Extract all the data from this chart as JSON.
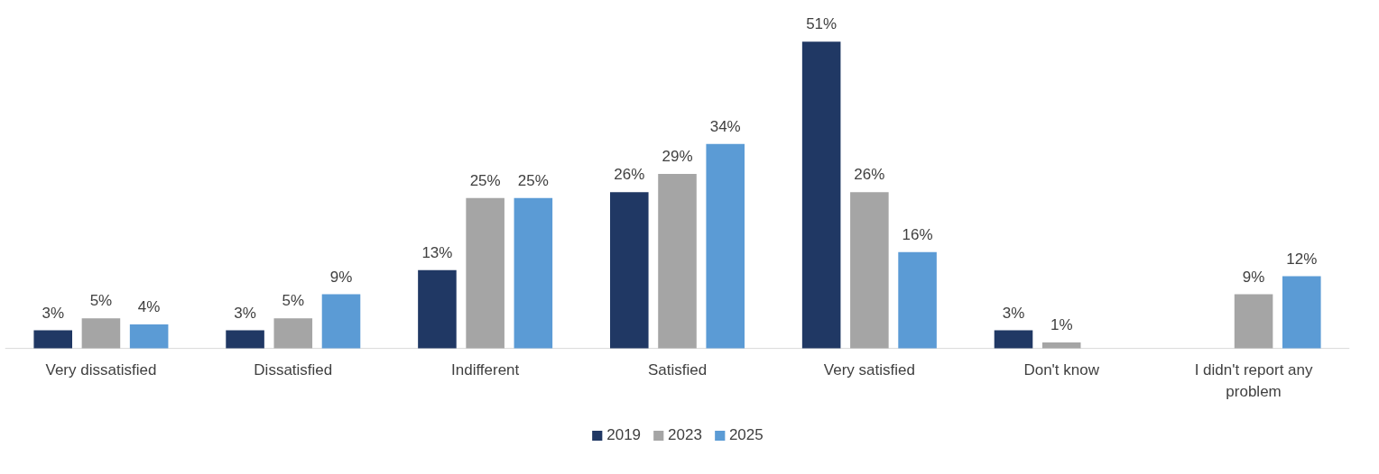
{
  "chart_data": {
    "type": "bar",
    "categories": [
      "Very dissatisfied",
      "Dissatisfied",
      "Indifferent",
      "Satisfied",
      "Very satisfied",
      "Don't know",
      "I didn't report any problem"
    ],
    "series": [
      {
        "name": "2019",
        "color": "#203864",
        "values": [
          3,
          3,
          13,
          26,
          51,
          3,
          null
        ],
        "value_labels": [
          "3%",
          "3%",
          "13%",
          "26%",
          "51%",
          "3%",
          null
        ]
      },
      {
        "name": "2023",
        "color": "#a5a5a5",
        "values": [
          5,
          5,
          25,
          29,
          26,
          1,
          9
        ],
        "value_labels": [
          "5%",
          "5%",
          "25%",
          "29%",
          "26%",
          "1%",
          "9%"
        ]
      },
      {
        "name": "2025",
        "color": "#5b9bd5",
        "values": [
          4,
          9,
          25,
          34,
          16,
          null,
          12
        ],
        "value_labels": [
          "4%",
          "9%",
          "25%",
          "34%",
          "16%",
          null,
          "12%"
        ]
      }
    ],
    "legend": "bottom"
  }
}
